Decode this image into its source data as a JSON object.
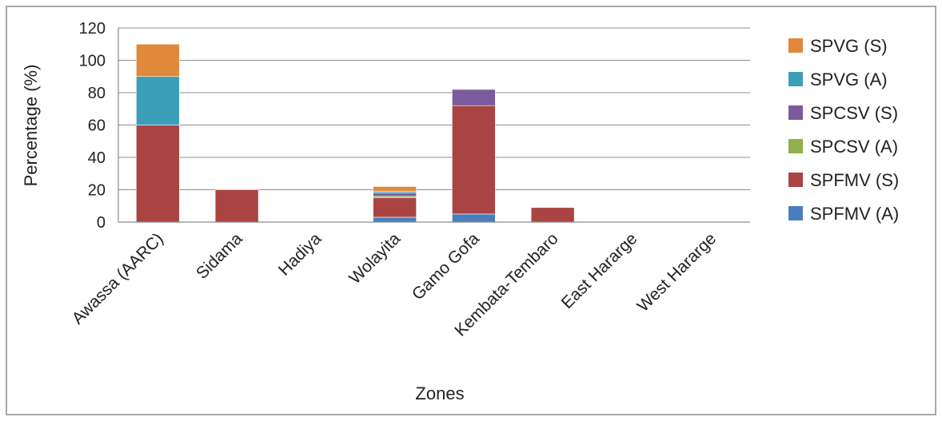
{
  "chart_data": {
    "type": "bar",
    "stacked": true,
    "xlabel": "Zones",
    "ylabel": "Percentage (%)",
    "ylim": [
      0,
      120
    ],
    "yticks": [
      0,
      20,
      40,
      60,
      80,
      100,
      120
    ],
    "grid": true,
    "legend": "right",
    "categories": [
      "Awassa (AARC)",
      "Sidama",
      "Hadiya",
      "Wolayita",
      "Gamo Gofa",
      "Kembata-Tembaro",
      "East Hararge",
      "West Hararge"
    ],
    "series": [
      {
        "name": "SPFMV (A)",
        "color": "#4a7ebb",
        "values": [
          0,
          0,
          0,
          3,
          5,
          0,
          0,
          0
        ]
      },
      {
        "name": "SPFMV (S)",
        "color": "#a94442",
        "values": [
          60,
          20,
          0,
          12,
          67,
          9,
          0,
          0
        ]
      },
      {
        "name": "SPCSV (A)",
        "color": "#8fb04a",
        "values": [
          0,
          0,
          0,
          1,
          0,
          0,
          0,
          0
        ]
      },
      {
        "name": "SPCSV (S)",
        "color": "#7a5b9c",
        "values": [
          0,
          0,
          0,
          2,
          10,
          0,
          0,
          0
        ]
      },
      {
        "name": "SPVG (A)",
        "color": "#3c9fb8",
        "values": [
          30,
          0,
          0,
          1,
          0,
          0,
          0,
          0
        ]
      },
      {
        "name": "SPVG (S)",
        "color": "#e0893a",
        "values": [
          20,
          0,
          0,
          3,
          0,
          0,
          0,
          0
        ]
      }
    ]
  }
}
